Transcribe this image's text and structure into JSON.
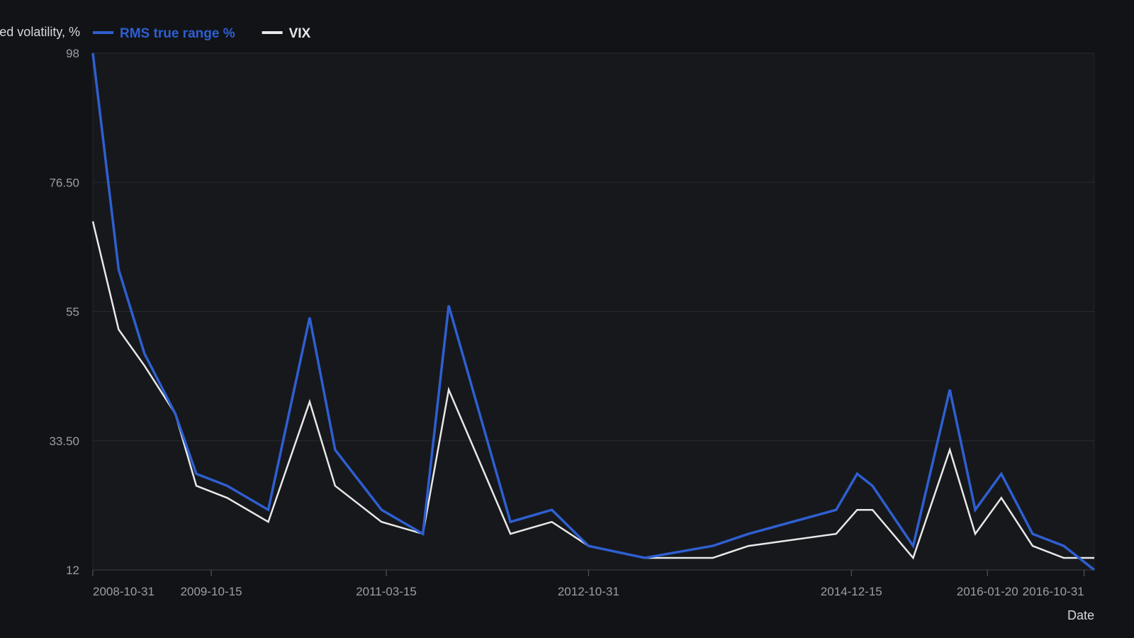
{
  "chart_data": {
    "type": "line",
    "ylabel": "Annualized volatility, %",
    "xlabel": "Date",
    "yticks": [
      "98",
      "76.50",
      "55",
      "33.50",
      "12"
    ],
    "ylim": [
      12,
      98
    ],
    "xticks": [
      "2008-10-31",
      "2009-10-15",
      "2011-03-15",
      "2012-10-31",
      "2014-12-15",
      "2016-01-20",
      "2016-10-31"
    ],
    "grid": true,
    "legend_position": "top-left",
    "series": [
      {
        "name": "RMS true range %",
        "color": "#2f5fd0",
        "points": [
          [
            "2008-10-31",
            98
          ],
          [
            "2009-01-15",
            62
          ],
          [
            "2009-04-01",
            48
          ],
          [
            "2009-07-01",
            38
          ],
          [
            "2009-09-01",
            28
          ],
          [
            "2009-12-01",
            26
          ],
          [
            "2010-04-01",
            22
          ],
          [
            "2010-08-01",
            54
          ],
          [
            "2010-10-15",
            32
          ],
          [
            "2011-03-01",
            22
          ],
          [
            "2011-07-01",
            18
          ],
          [
            "2011-09-15",
            56
          ],
          [
            "2011-12-15",
            38
          ],
          [
            "2012-03-15",
            20
          ],
          [
            "2012-07-15",
            22
          ],
          [
            "2012-10-31",
            16
          ],
          [
            "2013-04-15",
            14
          ],
          [
            "2013-11-01",
            16
          ],
          [
            "2014-02-15",
            18
          ],
          [
            "2014-10-31",
            22
          ],
          [
            "2015-01-01",
            28
          ],
          [
            "2015-02-15",
            26
          ],
          [
            "2015-06-15",
            16
          ],
          [
            "2015-10-01",
            42
          ],
          [
            "2015-12-15",
            22
          ],
          [
            "2016-03-01",
            28
          ],
          [
            "2016-06-01",
            18
          ],
          [
            "2016-09-01",
            16
          ],
          [
            "2016-11-30",
            12
          ]
        ]
      },
      {
        "name": "VIX",
        "color": "#e8e8e8",
        "points": [
          [
            "2008-10-31",
            70
          ],
          [
            "2009-01-15",
            52
          ],
          [
            "2009-04-01",
            46
          ],
          [
            "2009-07-01",
            38
          ],
          [
            "2009-09-01",
            26
          ],
          [
            "2009-12-01",
            24
          ],
          [
            "2010-04-01",
            20
          ],
          [
            "2010-08-01",
            40
          ],
          [
            "2010-10-15",
            26
          ],
          [
            "2011-03-01",
            20
          ],
          [
            "2011-07-01",
            18
          ],
          [
            "2011-09-15",
            42
          ],
          [
            "2011-12-15",
            30
          ],
          [
            "2012-03-15",
            18
          ],
          [
            "2012-07-15",
            20
          ],
          [
            "2012-10-31",
            16
          ],
          [
            "2013-04-15",
            14
          ],
          [
            "2013-11-01",
            14
          ],
          [
            "2014-02-15",
            16
          ],
          [
            "2014-10-31",
            18
          ],
          [
            "2015-01-01",
            22
          ],
          [
            "2015-02-15",
            22
          ],
          [
            "2015-06-15",
            14
          ],
          [
            "2015-10-01",
            32
          ],
          [
            "2015-12-15",
            18
          ],
          [
            "2016-03-01",
            24
          ],
          [
            "2016-06-01",
            16
          ],
          [
            "2016-09-01",
            14
          ],
          [
            "2016-11-30",
            14
          ]
        ]
      }
    ]
  }
}
